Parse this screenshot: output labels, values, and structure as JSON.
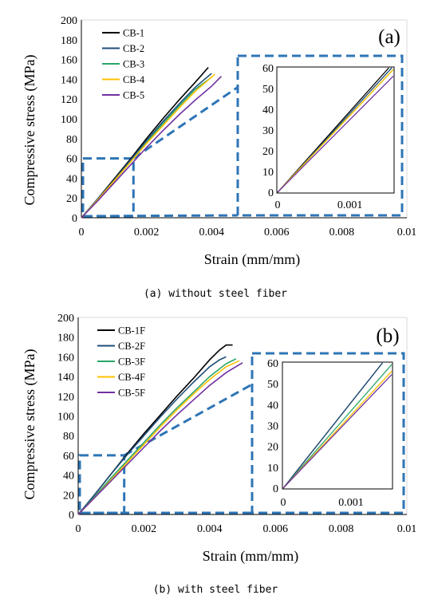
{
  "colors": {
    "s1": "#000000",
    "s2": "#1f4e79",
    "s3": "#2ca56b",
    "s4": "#ffc000",
    "s5": "#7030a0",
    "zoom": "#2e75b6"
  },
  "chart_data": [
    {
      "type": "line",
      "panel_label": "(a)",
      "caption": "(a) without steel fiber",
      "xlabel": "Strain (mm/mm)",
      "ylabel": "Compressive stress (MPa)",
      "xlim": [
        0,
        0.01
      ],
      "ylim": [
        0,
        200
      ],
      "x_ticks": [
        "0",
        "0.002",
        "0.004",
        "0.006",
        "0.008",
        "0.01"
      ],
      "y_ticks": [
        "0",
        "20",
        "40",
        "60",
        "80",
        "100",
        "120",
        "140",
        "160",
        "180",
        "200"
      ],
      "legend_position": "top-left",
      "series": [
        {
          "name": "CB-1",
          "x": [
            0,
            0.0005,
            0.001,
            0.0015,
            0.002,
            0.0025,
            0.003,
            0.0035,
            0.0039
          ],
          "y": [
            0,
            19,
            39,
            59,
            80,
            100,
            119,
            137,
            152
          ]
        },
        {
          "name": "CB-2",
          "x": [
            0,
            0.0005,
            0.001,
            0.0015,
            0.002,
            0.0025,
            0.003,
            0.0035,
            0.004
          ],
          "y": [
            0,
            19,
            38,
            58,
            78,
            97,
            115,
            132,
            146
          ]
        },
        {
          "name": "CB-3",
          "x": [
            0,
            0.0005,
            0.001,
            0.0015,
            0.002,
            0.0025,
            0.003,
            0.0035,
            0.004
          ],
          "y": [
            0,
            18,
            37,
            56,
            76,
            95,
            113,
            130,
            142
          ]
        },
        {
          "name": "CB-4",
          "x": [
            0,
            0.0005,
            0.001,
            0.0015,
            0.002,
            0.0025,
            0.003,
            0.0035,
            0.0041
          ],
          "y": [
            0,
            18,
            37,
            56,
            75,
            93,
            111,
            128,
            145
          ]
        },
        {
          "name": "CB-5",
          "x": [
            0,
            0.0005,
            0.001,
            0.0015,
            0.002,
            0.0025,
            0.003,
            0.0035,
            0.004,
            0.0043
          ],
          "y": [
            0,
            17,
            35,
            53,
            71,
            88,
            104,
            119,
            133,
            143
          ]
        }
      ],
      "inset": {
        "xlim": [
          0,
          0.0016
        ],
        "ylim": [
          0,
          60
        ],
        "x_ticks": [
          "0",
          "0.001"
        ],
        "y_ticks": [
          "0",
          "10",
          "20",
          "30",
          "40",
          "50",
          "60"
        ]
      }
    },
    {
      "type": "line",
      "panel_label": "(b)",
      "caption": "(b) with steel fiber",
      "xlabel": "Strain (mm/mm)",
      "ylabel": "Compressive stress (MPa)",
      "xlim": [
        0,
        0.01
      ],
      "ylim": [
        0,
        200
      ],
      "x_ticks": [
        "0",
        "0.002",
        "0.004",
        "0.006",
        "0.008",
        "0.01"
      ],
      "y_ticks": [
        "0",
        "20",
        "40",
        "60",
        "80",
        "100",
        "120",
        "140",
        "160",
        "180",
        "200"
      ],
      "legend_position": "top-left",
      "series": [
        {
          "name": "CB-1F",
          "x": [
            0,
            0.0005,
            0.001,
            0.0015,
            0.002,
            0.0025,
            0.003,
            0.0035,
            0.004,
            0.0043,
            0.0045,
            0.0047
          ],
          "y": [
            0,
            20,
            41,
            62,
            82,
            101,
            120,
            138,
            157,
            167,
            172,
            172
          ]
        },
        {
          "name": "CB-2F",
          "x": [
            0,
            0.0005,
            0.001,
            0.0015,
            0.002,
            0.0025,
            0.003,
            0.0035,
            0.004,
            0.0043,
            0.0045
          ],
          "y": [
            0,
            20,
            41,
            61,
            80,
            99,
            117,
            134,
            150,
            157,
            160
          ]
        },
        {
          "name": "CB-3F",
          "x": [
            0,
            0.0005,
            0.001,
            0.0015,
            0.002,
            0.0025,
            0.003,
            0.0035,
            0.004,
            0.0045,
            0.0048
          ],
          "y": [
            0,
            18,
            37,
            55,
            73,
            91,
            108,
            124,
            140,
            153,
            158
          ]
        },
        {
          "name": "CB-4F",
          "x": [
            0,
            0.0005,
            0.001,
            0.0015,
            0.002,
            0.0025,
            0.003,
            0.0035,
            0.004,
            0.0045,
            0.0049
          ],
          "y": [
            0,
            17,
            35,
            53,
            71,
            89,
            106,
            122,
            137,
            150,
            156
          ]
        },
        {
          "name": "CB-5F",
          "x": [
            0,
            0.0005,
            0.001,
            0.0015,
            0.002,
            0.0025,
            0.003,
            0.0035,
            0.004,
            0.0045,
            0.005
          ],
          "y": [
            0,
            17,
            34,
            51,
            68,
            85,
            101,
            116,
            131,
            144,
            154
          ]
        }
      ],
      "inset": {
        "xlim": [
          0,
          0.0016
        ],
        "ylim": [
          0,
          60
        ],
        "x_ticks": [
          "0",
          "0.001"
        ],
        "y_ticks": [
          "0",
          "10",
          "20",
          "30",
          "40",
          "50",
          "60"
        ]
      }
    }
  ]
}
